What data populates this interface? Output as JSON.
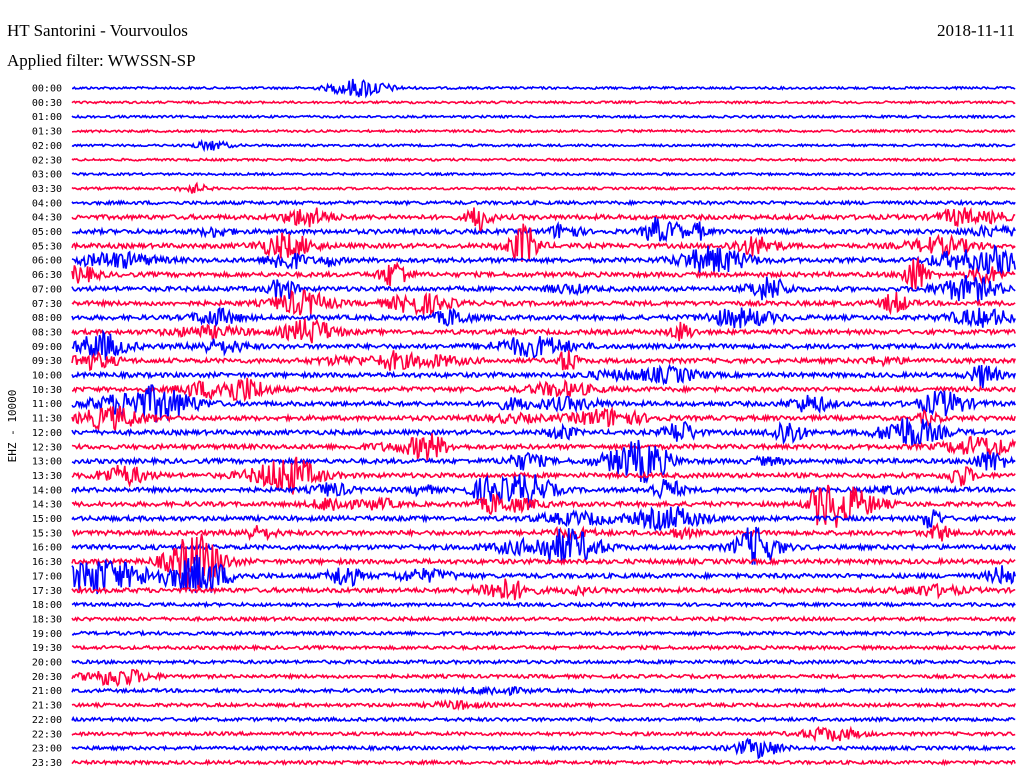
{
  "header": {
    "station": "HT Santorini - Vourvoulos",
    "date": "2018-11-11",
    "filter": "Applied filter: WWSSN-SP"
  },
  "chart_data": {
    "type": "helicorder",
    "channel_label": "EHZ - 10000",
    "trace_colors": [
      "#0000ff",
      "#ff0040"
    ],
    "rows": [
      "00:00",
      "00:30",
      "01:00",
      "01:30",
      "02:00",
      "02:30",
      "03:00",
      "03:30",
      "04:00",
      "04:30",
      "05:00",
      "05:30",
      "06:00",
      "06:30",
      "07:00",
      "07:30",
      "08:00",
      "08:30",
      "09:00",
      "09:30",
      "10:00",
      "10:30",
      "11:00",
      "11:30",
      "12:00",
      "12:30",
      "13:00",
      "13:30",
      "14:00",
      "14:30",
      "15:00",
      "15:30",
      "16:00",
      "16:30",
      "17:00",
      "17:30",
      "18:00",
      "18:30",
      "19:00",
      "19:30",
      "20:00",
      "20:30",
      "21:00",
      "21:30",
      "22:00",
      "22:30",
      "23:00",
      "23:30"
    ],
    "noise_level": [
      1,
      1,
      1,
      1,
      1,
      1,
      1,
      1,
      2,
      3,
      3,
      3,
      3,
      3,
      3,
      3,
      3,
      3,
      3,
      3,
      3,
      3,
      3,
      3,
      3,
      3,
      3,
      3,
      3,
      3,
      3,
      3,
      3,
      3,
      3,
      3,
      2,
      2,
      2,
      2,
      2,
      2,
      2,
      2,
      2,
      2,
      2,
      2
    ]
  }
}
